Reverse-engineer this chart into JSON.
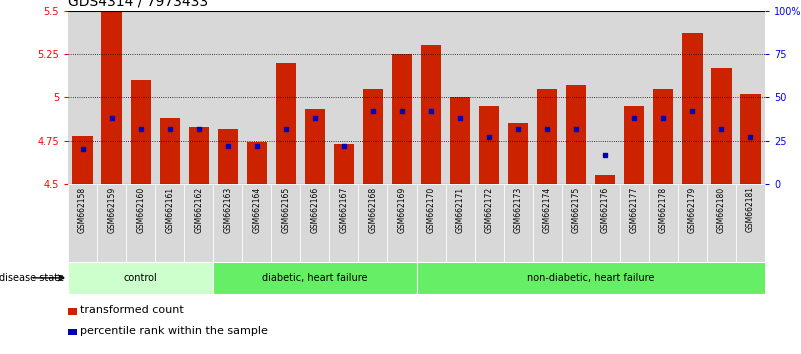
{
  "title": "GDS4314 / 7973433",
  "samples": [
    "GSM662158",
    "GSM662159",
    "GSM662160",
    "GSM662161",
    "GSM662162",
    "GSM662163",
    "GSM662164",
    "GSM662165",
    "GSM662166",
    "GSM662167",
    "GSM662168",
    "GSM662169",
    "GSM662170",
    "GSM662171",
    "GSM662172",
    "GSM662173",
    "GSM662174",
    "GSM662175",
    "GSM662176",
    "GSM662177",
    "GSM662178",
    "GSM662179",
    "GSM662180",
    "GSM662181"
  ],
  "red_values": [
    4.78,
    5.5,
    5.1,
    4.88,
    4.83,
    4.82,
    4.74,
    5.2,
    4.93,
    4.73,
    5.05,
    5.25,
    5.3,
    5.0,
    4.95,
    4.85,
    5.05,
    5.07,
    4.55,
    4.95,
    5.05,
    5.37,
    5.17,
    5.02
  ],
  "blue_percentiles": [
    20,
    38,
    32,
    32,
    32,
    22,
    22,
    32,
    38,
    22,
    42,
    42,
    42,
    38,
    27,
    32,
    32,
    32,
    17,
    38,
    38,
    42,
    32,
    27
  ],
  "ymin": 4.5,
  "ymax": 5.5,
  "yticks": [
    4.5,
    4.75,
    5.0,
    5.25,
    5.5
  ],
  "ytick_labels": [
    "4.5",
    "4.75",
    "5",
    "5.25",
    "5.5"
  ],
  "right_yticks": [
    0,
    25,
    50,
    75,
    100
  ],
  "right_ytick_labels": [
    "0",
    "25",
    "50",
    "75",
    "100%"
  ],
  "bar_color": "#CC2200",
  "marker_color": "#0000BB",
  "col_bg_color": "#d8d8d8",
  "background_color": "#ffffff",
  "title_fontsize": 10,
  "tick_fontsize": 7,
  "label_fontsize": 7.5,
  "groups": [
    {
      "label": "control",
      "start": 0,
      "end": 5,
      "color": "#ccffcc"
    },
    {
      "label": "diabetic, heart failure",
      "start": 5,
      "end": 12,
      "color": "#66ee66"
    },
    {
      "label": "non-diabetic, heart failure",
      "start": 12,
      "end": 24,
      "color": "#66ee66"
    }
  ]
}
